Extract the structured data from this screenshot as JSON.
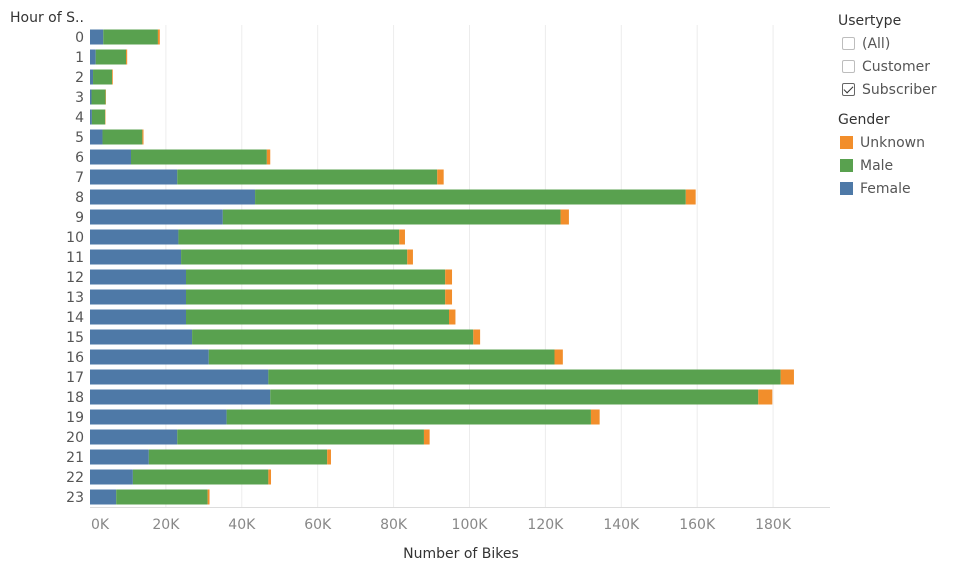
{
  "colors": {
    "Unknown": "#f28e2b",
    "Male": "#59a14f",
    "Female": "#4e79a7",
    "grid": "#ececec",
    "axis_text": "#888888",
    "row_text": "#555555"
  },
  "filter": {
    "title": "Usertype",
    "items": [
      {
        "label": "(All)",
        "checked": false
      },
      {
        "label": "Customer",
        "checked": false
      },
      {
        "label": "Subscriber",
        "checked": true
      }
    ]
  },
  "legend": {
    "title": "Gender",
    "items": [
      {
        "label": "Unknown",
        "color": "#f28e2b"
      },
      {
        "label": "Male",
        "color": "#59a14f"
      },
      {
        "label": "Female",
        "color": "#4e79a7"
      }
    ]
  },
  "chart_data": {
    "type": "bar",
    "orientation": "horizontal",
    "stacked": true,
    "row_header": "Hour of S..",
    "xlabel": "Number of Bikes",
    "xlim": [
      0,
      195000
    ],
    "xticks": [
      0,
      20000,
      40000,
      60000,
      80000,
      100000,
      120000,
      140000,
      160000,
      180000
    ],
    "xtick_labels": [
      "0K",
      "20K",
      "40K",
      "60K",
      "80K",
      "100K",
      "120K",
      "140K",
      "160K",
      "180K"
    ],
    "grid": true,
    "categories": [
      "0",
      "1",
      "2",
      "3",
      "4",
      "5",
      "6",
      "7",
      "8",
      "9",
      "10",
      "11",
      "12",
      "13",
      "14",
      "15",
      "16",
      "17",
      "18",
      "19",
      "20",
      "21",
      "22",
      "23"
    ],
    "series": [
      {
        "name": "Female",
        "values": [
          3500,
          1500,
          800,
          400,
          500,
          3300,
          10800,
          23000,
          43500,
          35000,
          23300,
          24000,
          25300,
          25300,
          25300,
          26900,
          31300,
          47000,
          47500,
          36000,
          23000,
          15500,
          11300,
          6900
        ]
      },
      {
        "name": "Male",
        "values": [
          14400,
          8000,
          5000,
          3700,
          3500,
          10500,
          35800,
          68500,
          113500,
          89000,
          58200,
          59600,
          68300,
          68300,
          69300,
          74100,
          91100,
          135000,
          128600,
          96000,
          65000,
          47000,
          35700,
          24100
        ]
      },
      {
        "name": "Unknown",
        "values": [
          500,
          300,
          200,
          100,
          100,
          300,
          900,
          1700,
          2600,
          2200,
          1500,
          1500,
          1800,
          1800,
          1700,
          1800,
          2200,
          3500,
          3700,
          2300,
          1500,
          1000,
          700,
          500
        ]
      }
    ]
  }
}
